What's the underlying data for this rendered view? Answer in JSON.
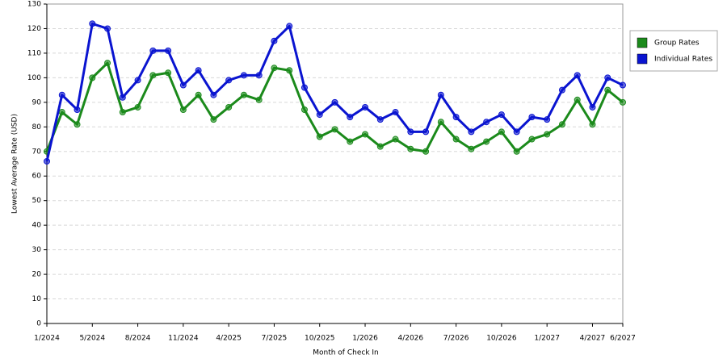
{
  "chart_data": {
    "type": "line",
    "x_label": "Month of Check In",
    "y_label": "Lowest Average Rate (USD)",
    "categories": [
      "1/2024",
      null,
      null,
      "5/2024",
      null,
      null,
      "8/2024",
      null,
      null,
      "11/2024",
      null,
      null,
      "4/2025",
      null,
      null,
      "7/2025",
      null,
      null,
      "10/2025",
      null,
      null,
      "1/2026",
      null,
      null,
      "4/2026",
      null,
      null,
      "7/2026",
      null,
      null,
      "10/2026",
      null,
      null,
      "1/2027",
      null,
      null,
      "4/2027",
      null,
      "6/2027"
    ],
    "series": [
      {
        "name": "Group Rates",
        "color": "#1b8a1b",
        "values": [
          70,
          86,
          81,
          100,
          106,
          86,
          88,
          101,
          102,
          87,
          93,
          83,
          88,
          93,
          91,
          104,
          103,
          87,
          76,
          79,
          74,
          77,
          72,
          75,
          71,
          70,
          82,
          75,
          71,
          74,
          78,
          70,
          75,
          77,
          81,
          91,
          81,
          95,
          90
        ]
      },
      {
        "name": "Individual Rates",
        "color": "#0a14d0",
        "values": [
          66,
          93,
          87,
          122,
          120,
          92,
          99,
          111,
          111,
          97,
          103,
          93,
          99,
          101,
          101,
          115,
          121,
          96,
          85,
          90,
          84,
          88,
          83,
          86,
          78,
          78,
          93,
          84,
          78,
          82,
          85,
          78,
          84,
          83,
          95,
          101,
          88,
          100,
          97
        ]
      }
    ],
    "ylim": [
      0,
      130
    ],
    "yticks": [
      0,
      10,
      20,
      30,
      40,
      50,
      60,
      70,
      80,
      90,
      100,
      110,
      120,
      130
    ],
    "grid": true,
    "legend": "right"
  }
}
